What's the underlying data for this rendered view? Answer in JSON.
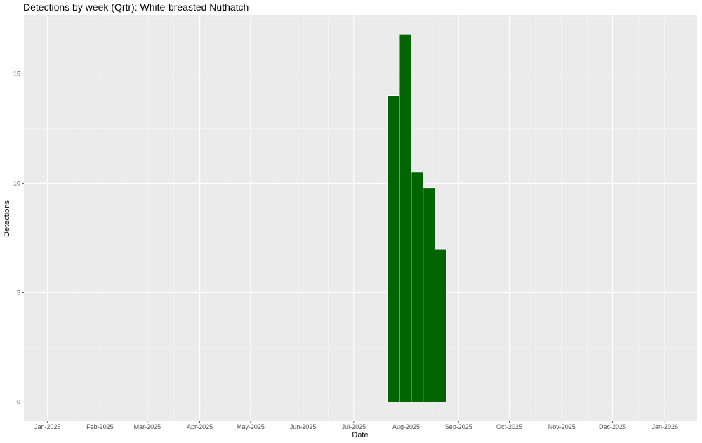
{
  "chart_data": {
    "type": "bar",
    "title": "Detections by week (Qrtr): White-breasted Nuthatch",
    "xlabel": "Date",
    "ylabel": "Detections",
    "x_ticks": [
      "Jan-2025",
      "Feb-2025",
      "Mar-2025",
      "Apr-2025",
      "May-2025",
      "Jun-2025",
      "Jul-2025",
      "Aug-2025",
      "Sep-2025",
      "Oct-2025",
      "Nov-2025",
      "Dec-2025",
      "Jan-2026"
    ],
    "y_ticks": [
      0,
      5,
      10,
      15
    ],
    "xlim": [
      "2024-12-18",
      "2026-01-20"
    ],
    "ylim": [
      -0.85,
      17.7
    ],
    "grid": true,
    "bar_color": "#006400",
    "panel_color": "#ebebeb",
    "bar_width_days": 7,
    "bars": [
      {
        "week_start": "2025-07-21",
        "value": 14.0
      },
      {
        "week_start": "2025-07-28",
        "value": 16.8
      },
      {
        "week_start": "2025-08-04",
        "value": 10.5
      },
      {
        "week_start": "2025-08-11",
        "value": 9.8
      },
      {
        "week_start": "2025-08-18",
        "value": 7.0
      }
    ]
  }
}
